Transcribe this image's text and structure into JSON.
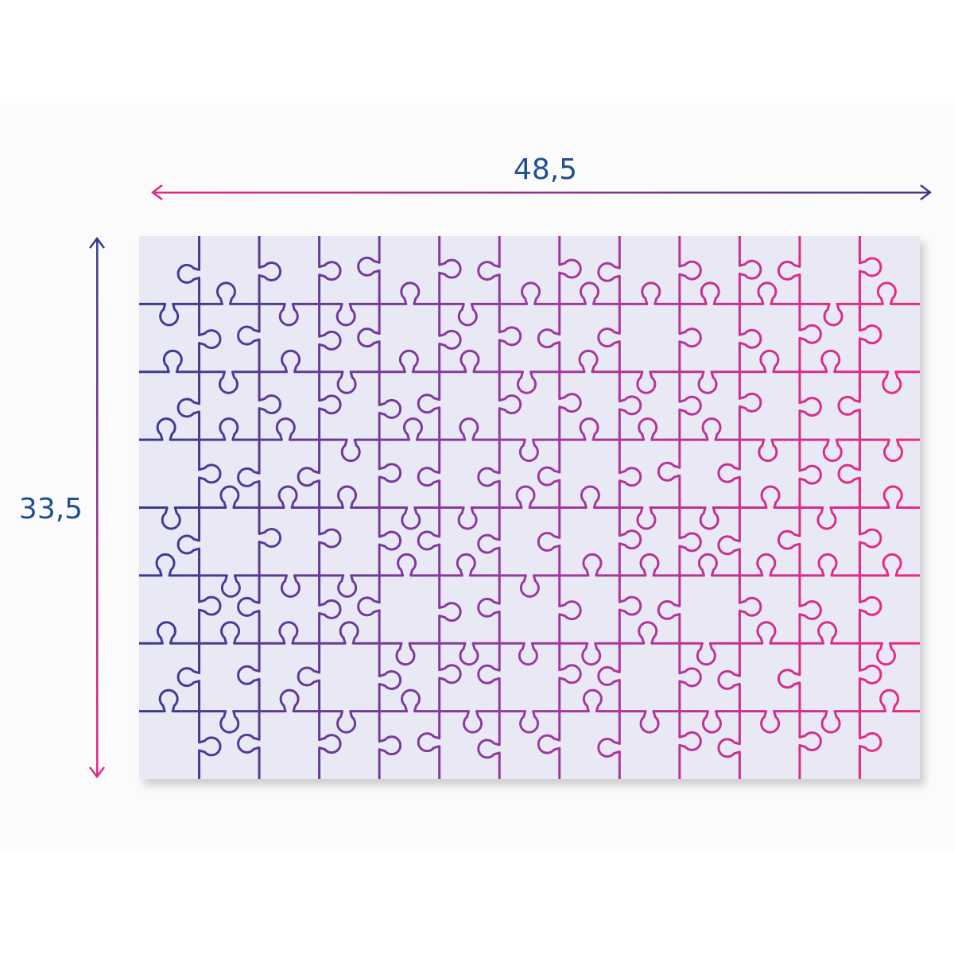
{
  "dimensions": {
    "width": "48,5",
    "height": "33,5"
  }
}
